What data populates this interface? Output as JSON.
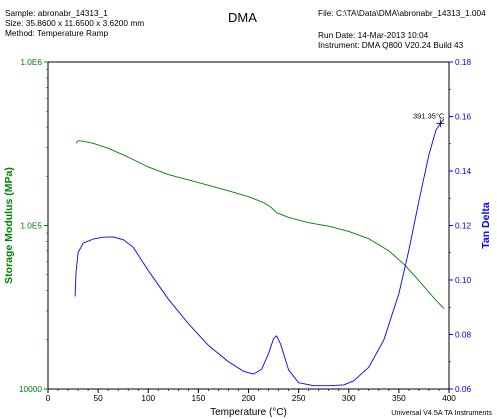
{
  "header": {
    "sample": "Sample: abronabr_14313_1",
    "size": "Size:  35.8600 x 11.6500 x 3.6200 mm",
    "method": "Method: Temperature Ramp",
    "title": "DMA",
    "file": "File: C:\\TA\\Data\\DMA\\abronabr_14313_1.004",
    "run_date": "Run Date: 14-Mar-2013 10:04",
    "instrument": "Instrument: DMA Q800 V20.24 Build 43"
  },
  "footer": "Universal V4.5A TA Instruments",
  "chart_data": {
    "type": "line",
    "title": "DMA",
    "xlabel": "Temperature (°C)",
    "ylabel_left": "Storage Modulus (MPa)",
    "ylabel_right": "Tan Delta",
    "xlim": [
      0,
      400
    ],
    "x_ticks": [
      0,
      50,
      100,
      150,
      200,
      250,
      300,
      350,
      400
    ],
    "y_left_scale": "log",
    "y_left_lim": [
      10000,
      1000000
    ],
    "y_left_ticks": [
      {
        "value": 10000,
        "label": "10000"
      },
      {
        "value": 100000,
        "label": "1.0E5"
      },
      {
        "value": 1000000,
        "label": "1.0E6"
      }
    ],
    "y_right_lim": [
      0.06,
      0.18
    ],
    "y_right_ticks": [
      0.06,
      0.08,
      0.1,
      0.12,
      0.14,
      0.16,
      0.18
    ],
    "left_axis_color": "#008000",
    "right_axis_color": "#0000ff",
    "series": [
      {
        "axis": "left",
        "color": "#008000",
        "points": [
          [
            28,
            318000
          ],
          [
            30,
            330000
          ],
          [
            35,
            328000
          ],
          [
            45,
            318000
          ],
          [
            60,
            297000
          ],
          [
            80,
            262000
          ],
          [
            100,
            228000
          ],
          [
            120,
            205000
          ],
          [
            150,
            183000
          ],
          [
            180,
            163000
          ],
          [
            200,
            150000
          ],
          [
            215,
            138000
          ],
          [
            222,
            130000
          ],
          [
            228,
            120000
          ],
          [
            240,
            112000
          ],
          [
            260,
            104000
          ],
          [
            280,
            99000
          ],
          [
            300,
            92000
          ],
          [
            320,
            83000
          ],
          [
            340,
            70000
          ],
          [
            355,
            58000
          ],
          [
            370,
            46000
          ],
          [
            385,
            36000
          ],
          [
            395,
            31000
          ]
        ]
      },
      {
        "axis": "right",
        "color": "#0000ff",
        "points": [
          [
            27,
            0.094
          ],
          [
            28,
            0.103
          ],
          [
            30,
            0.11
          ],
          [
            35,
            0.1135
          ],
          [
            45,
            0.115
          ],
          [
            55,
            0.1157
          ],
          [
            65,
            0.1158
          ],
          [
            75,
            0.1148
          ],
          [
            85,
            0.112
          ],
          [
            100,
            0.1035
          ],
          [
            120,
            0.093
          ],
          [
            140,
            0.084
          ],
          [
            160,
            0.076
          ],
          [
            180,
            0.07
          ],
          [
            195,
            0.0665
          ],
          [
            205,
            0.0655
          ],
          [
            213,
            0.0672
          ],
          [
            220,
            0.073
          ],
          [
            225,
            0.0785
          ],
          [
            228,
            0.0795
          ],
          [
            232,
            0.0765
          ],
          [
            240,
            0.067
          ],
          [
            250,
            0.0623
          ],
          [
            265,
            0.0612
          ],
          [
            280,
            0.0612
          ],
          [
            295,
            0.0615
          ],
          [
            305,
            0.063
          ],
          [
            320,
            0.068
          ],
          [
            335,
            0.078
          ],
          [
            350,
            0.095
          ],
          [
            360,
            0.111
          ],
          [
            370,
            0.129
          ],
          [
            380,
            0.146
          ],
          [
            387,
            0.155
          ],
          [
            391.35,
            0.1575
          ],
          [
            395,
            0.159
          ]
        ]
      }
    ],
    "annotations": [
      {
        "text": "391.35°C",
        "x": 391.35,
        "axis": "right",
        "y": 0.1575
      }
    ]
  }
}
